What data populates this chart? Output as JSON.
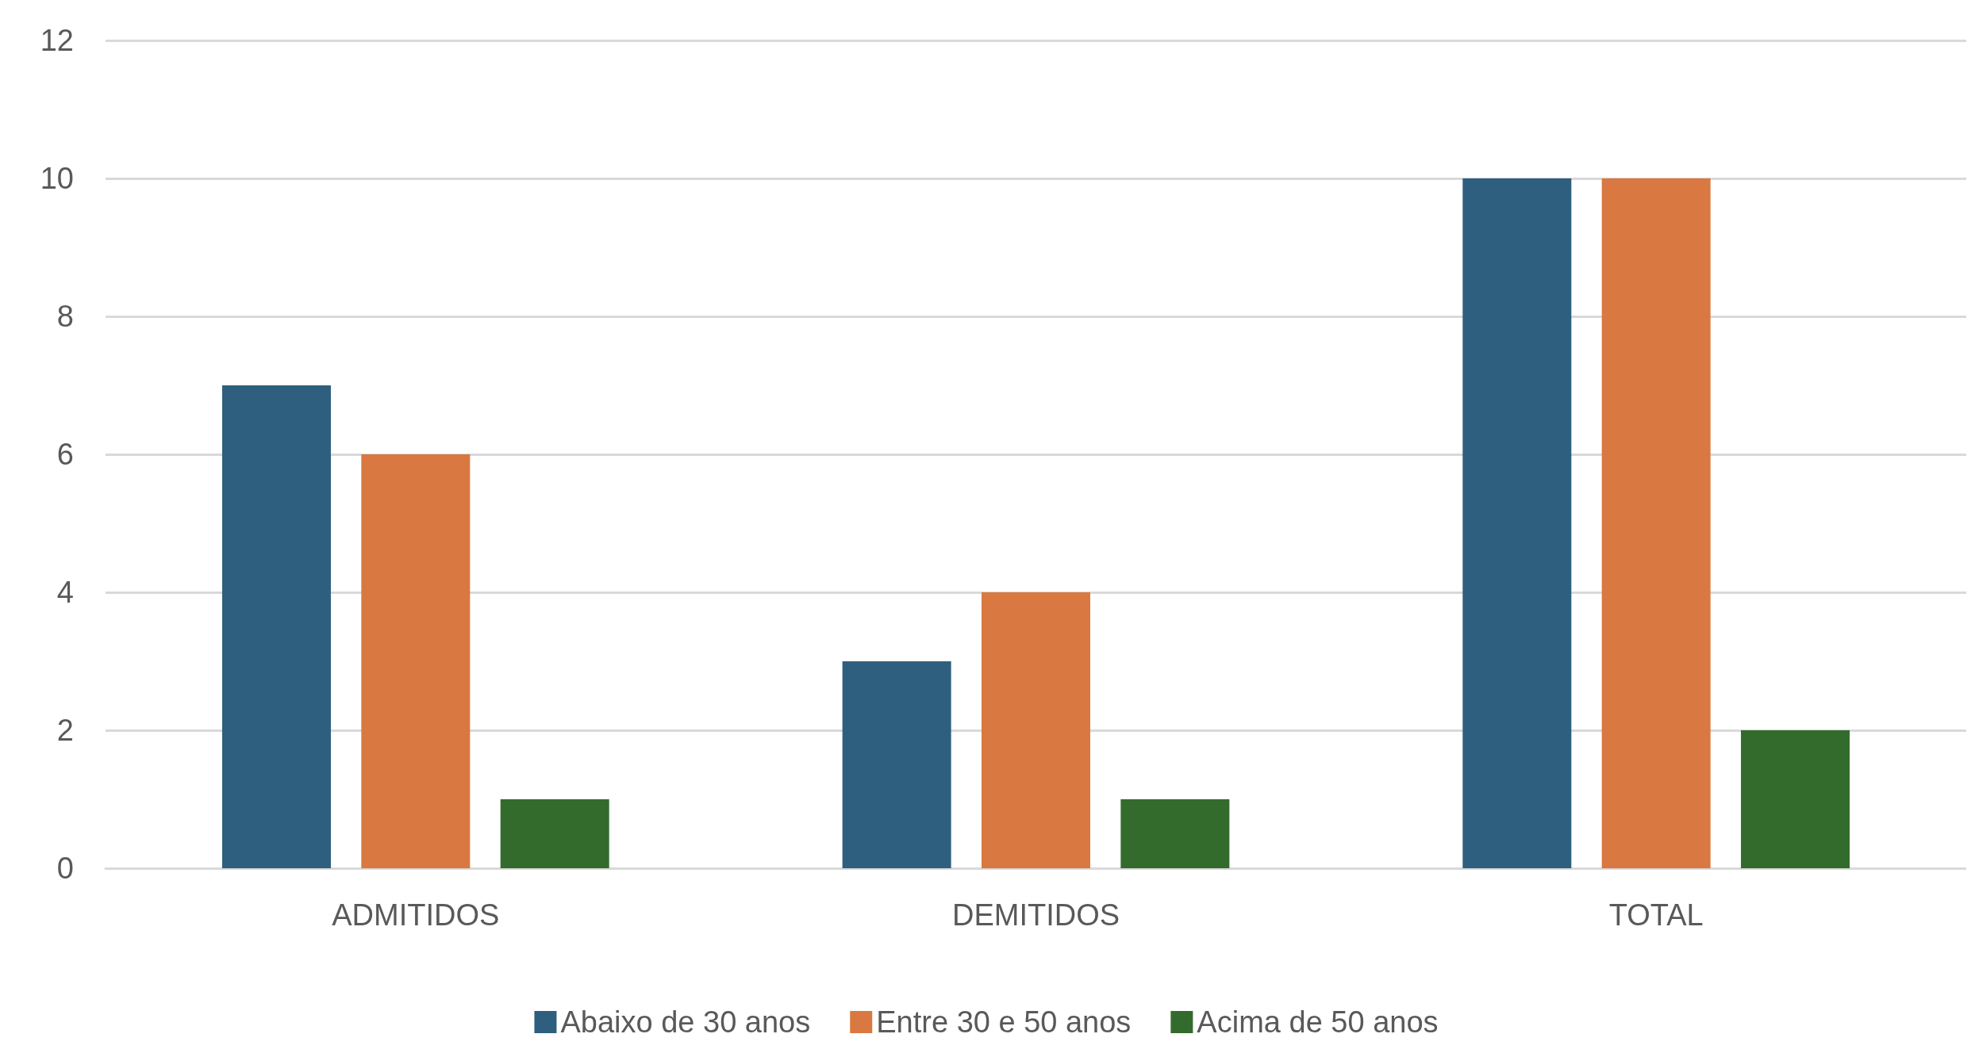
{
  "chart_data": {
    "type": "bar",
    "categories": [
      "ADMITIDOS",
      "DEMITIDOS",
      "TOTAL"
    ],
    "series": [
      {
        "name": "Abaixo de 30 anos",
        "color": "#2e5f7f",
        "values": [
          7,
          3,
          10
        ]
      },
      {
        "name": "Entre 30 e 50 anos",
        "color": "#d97840",
        "values": [
          6,
          4,
          10
        ]
      },
      {
        "name": "Acima de 50 anos",
        "color": "#336b2c",
        "values": [
          1,
          1,
          2
        ]
      }
    ],
    "ylim": [
      0,
      12
    ],
    "yticks": [
      0,
      2,
      4,
      6,
      8,
      10,
      12
    ],
    "grid": "y",
    "legend": "bottom"
  }
}
